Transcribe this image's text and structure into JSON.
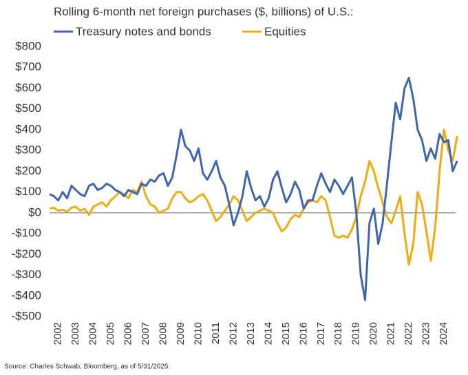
{
  "chart_data": {
    "type": "line",
    "title": "Rolling 6-month net foreign purchases ($, billions) of U.S.:",
    "source": "Source: Charles Schwab, Bloomberg, as of 5/31/2025.",
    "x": [
      2002,
      2002.25,
      2002.5,
      2002.75,
      2003,
      2003.25,
      2003.5,
      2003.75,
      2004,
      2004.25,
      2004.5,
      2004.75,
      2005,
      2005.25,
      2005.5,
      2005.75,
      2006,
      2006.25,
      2006.5,
      2006.75,
      2007,
      2007.25,
      2007.5,
      2007.75,
      2008,
      2008.25,
      2008.5,
      2008.75,
      2009,
      2009.25,
      2009.5,
      2009.75,
      2010,
      2010.25,
      2010.5,
      2010.75,
      2011,
      2011.25,
      2011.5,
      2011.75,
      2012,
      2012.25,
      2012.5,
      2012.75,
      2013,
      2013.25,
      2013.5,
      2013.75,
      2014,
      2014.25,
      2014.5,
      2014.75,
      2015,
      2015.25,
      2015.5,
      2015.75,
      2016,
      2016.25,
      2016.5,
      2016.75,
      2017,
      2017.25,
      2017.5,
      2017.75,
      2018,
      2018.25,
      2018.5,
      2018.75,
      2019,
      2019.25,
      2019.5,
      2019.75,
      2020,
      2020.25,
      2020.5,
      2020.75,
      2021,
      2021.25,
      2021.5,
      2021.75,
      2022,
      2022.25,
      2022.5,
      2022.75,
      2023,
      2023.25,
      2023.5,
      2023.75,
      2024,
      2024.25,
      2024.5,
      2024.75,
      2025,
      2025.25
    ],
    "series": [
      {
        "name": "Treasury notes and bonds",
        "color": "#3f66ad",
        "values": [
          90,
          80,
          60,
          100,
          70,
          130,
          110,
          90,
          80,
          130,
          140,
          110,
          120,
          140,
          130,
          110,
          100,
          80,
          110,
          100,
          90,
          140,
          130,
          160,
          150,
          180,
          190,
          130,
          170,
          280,
          400,
          320,
          300,
          250,
          310,
          190,
          160,
          200,
          250,
          170,
          130,
          40,
          -60,
          0,
          80,
          200,
          120,
          60,
          80,
          30,
          70,
          160,
          200,
          120,
          50,
          90,
          150,
          110,
          20,
          60,
          60,
          130,
          190,
          140,
          100,
          160,
          130,
          90,
          130,
          170,
          0,
          -300,
          -420,
          -50,
          20,
          -150,
          -50,
          140,
          340,
          530,
          450,
          600,
          650,
          550,
          400,
          350,
          250,
          310,
          260,
          380,
          340,
          350,
          200,
          250
        ]
      },
      {
        "name": "Equities",
        "color": "#f2ab0f",
        "values": [
          20,
          25,
          10,
          15,
          5,
          25,
          30,
          10,
          20,
          -10,
          30,
          40,
          50,
          30,
          60,
          80,
          100,
          90,
          70,
          110,
          100,
          150,
          80,
          40,
          30,
          0,
          10,
          20,
          70,
          100,
          100,
          70,
          50,
          60,
          80,
          90,
          60,
          10,
          -40,
          -20,
          10,
          40,
          80,
          60,
          10,
          -40,
          -20,
          0,
          10,
          20,
          10,
          0,
          -50,
          -90,
          -70,
          -30,
          -10,
          -20,
          20,
          50,
          60,
          50,
          80,
          60,
          -20,
          -110,
          -120,
          -110,
          -120,
          -80,
          -20,
          80,
          150,
          250,
          200,
          120,
          50,
          -20,
          -50,
          10,
          80,
          -100,
          -250,
          -150,
          100,
          40,
          -90,
          -230,
          -70,
          200,
          400,
          300,
          250,
          370
        ]
      }
    ],
    "xlim": [
      2002,
      2025.4
    ],
    "xticks": [
      2002,
      2003,
      2004,
      2005,
      2006,
      2007,
      2008,
      2009,
      2010,
      2011,
      2012,
      2013,
      2014,
      2015,
      2016,
      2017,
      2018,
      2019,
      2020,
      2021,
      2022,
      2023,
      2024
    ],
    "ylim": [
      -500,
      800
    ],
    "yticks": [
      {
        "value": 800,
        "label": "$800"
      },
      {
        "value": 700,
        "label": "$700"
      },
      {
        "value": 600,
        "label": "$600"
      },
      {
        "value": 500,
        "label": "$500"
      },
      {
        "value": 400,
        "label": "$400"
      },
      {
        "value": 300,
        "label": "$300"
      },
      {
        "value": 200,
        "label": "$200"
      },
      {
        "value": 100,
        "label": "$100"
      },
      {
        "value": 0,
        "label": "$0"
      },
      {
        "value": -100,
        "label": "-$100"
      },
      {
        "value": -200,
        "label": "-$200"
      },
      {
        "value": -300,
        "label": "-$300"
      },
      {
        "value": -400,
        "label": "-$400"
      },
      {
        "value": -500,
        "label": "-$500"
      }
    ]
  }
}
